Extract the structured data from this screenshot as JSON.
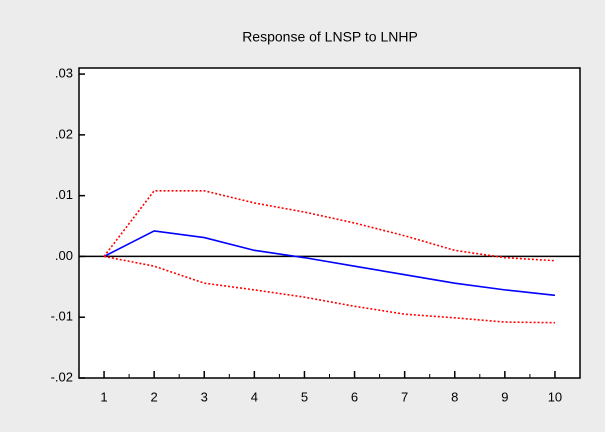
{
  "chart_data": {
    "type": "line",
    "title": "Response of LNSP to LNHP",
    "categories": [
      "1",
      "2",
      "3",
      "4",
      "5",
      "6",
      "7",
      "8",
      "9",
      "10"
    ],
    "series": [
      {
        "color": "#0000ff",
        "dashed": false,
        "values": [
          0,
          0.0042,
          0.0031,
          0.001,
          -0.0002,
          -0.0016,
          -0.003,
          -0.0044,
          -0.0055,
          -0.0064
        ]
      },
      {
        "color": "#ff0000",
        "dashed": true,
        "values": [
          0,
          0.0108,
          0.0108,
          0.0088,
          0.0073,
          0.0055,
          0.0034,
          0.001,
          -0.0002,
          -0.0007
        ]
      },
      {
        "color": "#ff0000",
        "dashed": true,
        "values": [
          0,
          -0.0016,
          -0.0044,
          -0.0055,
          -0.0067,
          -0.0082,
          -0.0095,
          -0.0101,
          -0.0108,
          -0.0109
        ]
      }
    ],
    "ylim": [
      -0.02,
      0.031
    ],
    "yticks": [
      {
        "value": -0.02,
        "label": "-.02"
      },
      {
        "value": -0.01,
        "label": "-.01"
      },
      {
        "value": 0,
        "label": ".00"
      },
      {
        "value": 0.01,
        "label": ".01"
      },
      {
        "value": 0.02,
        "label": ".02"
      },
      {
        "value": 0.03,
        "label": ".03"
      }
    ],
    "zero_line": true,
    "grid": false
  }
}
